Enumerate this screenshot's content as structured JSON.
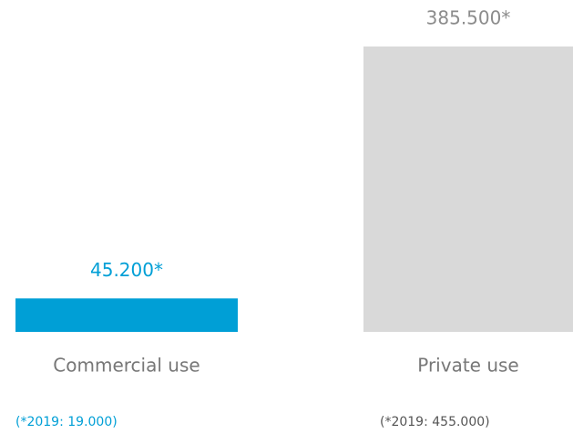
{
  "chart_data": {
    "type": "bar",
    "categories": [
      "Commercial use",
      "Private use"
    ],
    "values": [
      45200,
      385500
    ],
    "value_labels": [
      "45.200*",
      "385.500*"
    ],
    "colors": [
      "#009fd6",
      "#d9d9d9"
    ],
    "label_colors": [
      "#009fd6",
      "#8c8c8c"
    ],
    "notes": [
      "(*2019: 19.000)",
      "(*2019: 455.000)"
    ]
  }
}
